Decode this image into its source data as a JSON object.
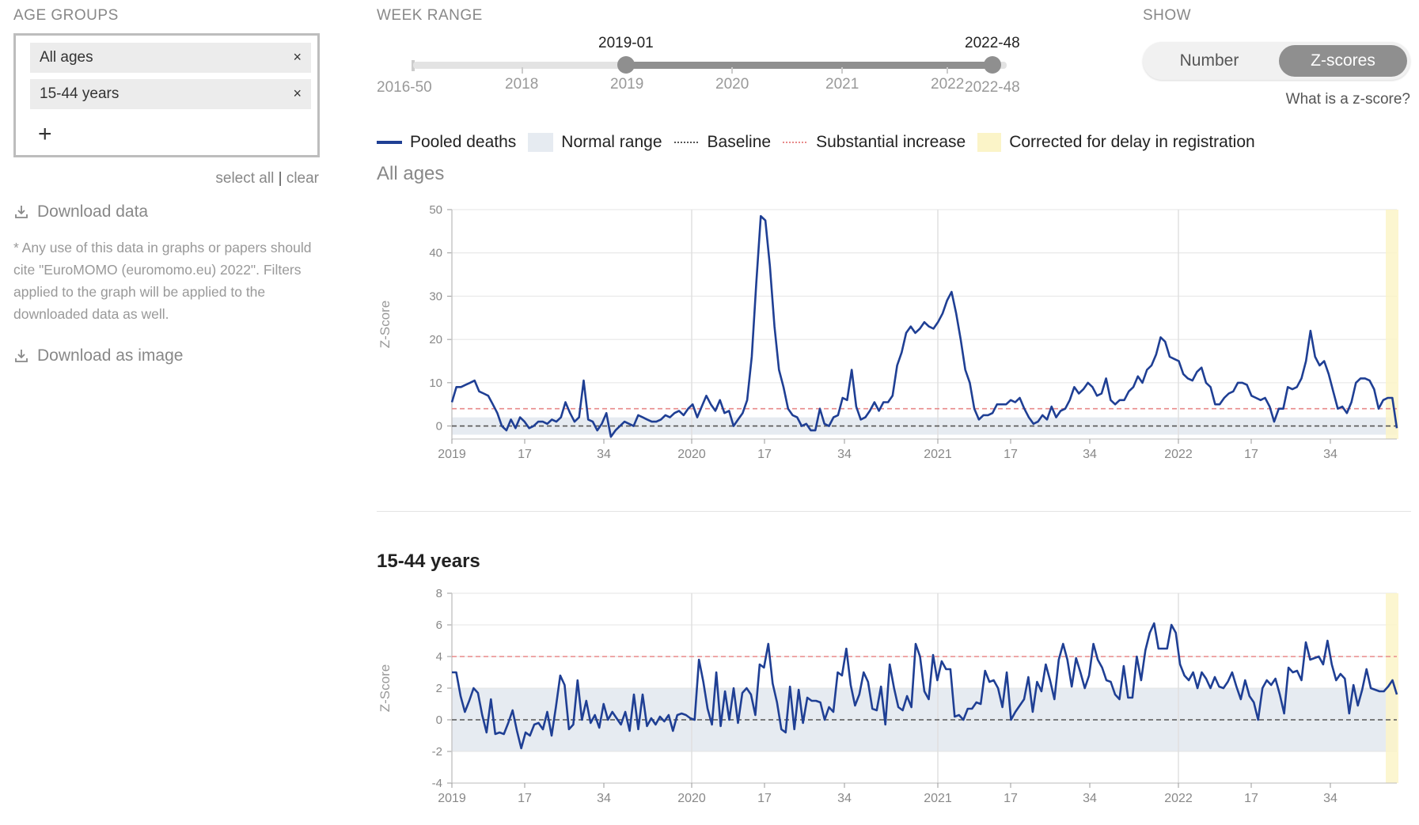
{
  "sidebar": {
    "age_groups_title": "AGE GROUPS",
    "chips": [
      "All ages",
      "15-44 years"
    ],
    "remove_label": "×",
    "add_label": "+",
    "select_all": "select all",
    "separator": "|",
    "clear": "clear",
    "download_data": "Download data",
    "note": "* Any use of this data in graphs or papers should cite \"EuroMOMO (euromomo.eu) 2022\". Filters applied to the graph will be applied to the downloaded data as well.",
    "download_image": "Download as image"
  },
  "week_range": {
    "title": "WEEK RANGE",
    "min_label": "2016-50",
    "max_label": "2022-48",
    "selected_start": "2019-01",
    "selected_end": "2022-48",
    "tick_labels": [
      "2018",
      "2019",
      "2020",
      "2021",
      "2022"
    ]
  },
  "show": {
    "title": "SHOW",
    "options": [
      "Number",
      "Z-scores"
    ],
    "selected": "Z-scores",
    "help_link": "What is a z-score?"
  },
  "legend": {
    "pooled": "Pooled deaths",
    "normal": "Normal range",
    "baseline": "Baseline",
    "substantial": "Substantial increase",
    "corrected": "Corrected for delay in registration"
  },
  "colors": {
    "line": "#1f3f94",
    "normal_range": "#e6ebf1",
    "baseline": "#555555",
    "substantial": "#e88a8a",
    "corrected": "#fbf4c8"
  },
  "chart_data": [
    {
      "type": "line",
      "title": "All ages",
      "ylabel": "Z-Score",
      "ylim": [
        -3,
        50
      ],
      "yticks": [
        0,
        10,
        20,
        30,
        40,
        50
      ],
      "xtick_labels": [
        "2019",
        "17",
        "34",
        "2020",
        "17",
        "34",
        "2021",
        "17",
        "34",
        "2022",
        "17",
        "34"
      ],
      "normal_range": [
        -2,
        2
      ],
      "baseline": 0,
      "substantial_increase": 4,
      "series": [
        {
          "values": [
            5.5,
            9,
            9,
            9.5,
            10,
            10.5,
            8,
            7.5,
            7,
            5,
            3,
            0,
            -1,
            1.5,
            -0.5,
            2,
            1,
            -0.5,
            0,
            1,
            1,
            0.5,
            1.5,
            1,
            2,
            5.5,
            3,
            1,
            2,
            10.5,
            1.5,
            1,
            -1,
            0.5,
            3,
            -2.5,
            -1,
            0,
            1,
            0.5,
            0,
            2.5,
            2,
            1.5,
            1,
            1,
            1.5,
            2.5,
            2,
            3,
            3.5,
            2.5,
            4,
            5,
            2,
            4.5,
            7,
            5,
            3.5,
            6,
            3,
            3.5,
            0,
            1.5,
            3,
            6,
            16,
            33,
            48.5,
            47.5,
            37,
            23,
            13,
            9,
            4,
            2.5,
            2,
            0,
            0.5,
            -1,
            -1,
            4,
            0.5,
            0,
            2,
            2.5,
            6.5,
            6,
            13,
            4.5,
            1.5,
            2,
            3.5,
            5.5,
            3.5,
            5.5,
            5.5,
            7,
            14,
            17,
            21.5,
            23,
            21.5,
            22.5,
            24,
            23,
            22.5,
            24,
            26,
            29,
            31,
            26,
            20,
            13,
            10,
            4,
            1.5,
            2.5,
            2.5,
            3,
            5,
            5,
            5,
            6,
            5.5,
            6.5,
            4,
            2,
            0.5,
            1,
            2.5,
            1.5,
            4.5,
            2,
            3.5,
            4,
            6,
            9,
            7.5,
            8.5,
            10,
            9,
            7,
            7.5,
            11,
            6,
            5,
            6,
            6,
            8,
            9,
            11.5,
            10,
            13,
            14,
            16.5,
            20.5,
            19.5,
            16,
            15.5,
            15,
            12,
            11,
            10.5,
            12.5,
            13.5,
            10,
            9,
            5,
            5,
            6.5,
            7.5,
            8,
            10,
            10,
            9.5,
            7,
            6.5,
            6,
            6.5,
            4.5,
            1,
            4,
            4,
            9,
            8.5,
            9,
            11,
            15,
            22,
            16,
            14,
            15,
            12,
            8,
            4,
            4.5,
            3,
            5.5,
            10,
            11,
            11,
            10.5,
            8.5,
            4,
            6,
            6.5,
            6.5,
            -0.5
          ]
        }
      ]
    },
    {
      "type": "line",
      "title": "15-44 years",
      "ylabel": "Z-Score",
      "ylim": [
        -4,
        8
      ],
      "yticks": [
        -4,
        -2,
        0,
        2,
        4,
        6,
        8
      ],
      "xtick_labels": [
        "2019",
        "17",
        "34",
        "2020",
        "17",
        "34",
        "2021",
        "17",
        "34",
        "2022",
        "17",
        "34"
      ],
      "normal_range": [
        -2,
        2
      ],
      "baseline": 0,
      "substantial_increase": 4,
      "series": [
        {
          "values": [
            3,
            3,
            1.5,
            0.5,
            1.2,
            2,
            1.7,
            0.3,
            -0.8,
            1.3,
            -0.9,
            -0.8,
            -0.9,
            -0.2,
            0.6,
            -0.7,
            -1.8,
            -0.8,
            -1,
            -0.3,
            -0.2,
            -0.6,
            0.5,
            -1,
            0.8,
            2.8,
            2.2,
            -0.6,
            -0.3,
            2.5,
            0,
            1.2,
            -0.2,
            0.3,
            -0.5,
            1,
            0,
            0.5,
            0.1,
            -0.3,
            0.5,
            -0.7,
            1.6,
            -0.6,
            1.6,
            -0.4,
            0.1,
            -0.3,
            0.2,
            -0.1,
            0.3,
            -0.7,
            0.3,
            0.4,
            0.3,
            0.1,
            0,
            3.8,
            2.4,
            0.7,
            -0.3,
            3,
            -0.4,
            1.8,
            0,
            2,
            -0.2,
            1.7,
            2,
            1.6,
            0.3,
            3.5,
            3.3,
            4.8,
            2.3,
            1.1,
            -0.6,
            -0.8,
            2.1,
            -0.6,
            1.9,
            -0.2,
            1.4,
            1.2,
            1.2,
            1.1,
            0,
            0.8,
            0.5,
            3,
            2.8,
            4.5,
            2.2,
            0.9,
            1.6,
            3,
            2.4,
            0.7,
            0.6,
            2.1,
            -0.3,
            3.5,
            2,
            0.8,
            0.6,
            1.5,
            0.8,
            4.8,
            4,
            1.8,
            1.3,
            4.1,
            2.5,
            3.7,
            3.2,
            3.2,
            0.2,
            0.3,
            0,
            0.7,
            0.7,
            1.1,
            1,
            3.1,
            2.4,
            2.5,
            2,
            0.8,
            3,
            0,
            0.5,
            0.9,
            1.3,
            2.7,
            0.5,
            2.4,
            1.8,
            3.5,
            2.5,
            1.3,
            3.8,
            4.8,
            3.8,
            2.1,
            3.9,
            3,
            2,
            2.8,
            4.8,
            3.8,
            3.3,
            2.5,
            2.4,
            1.6,
            1.3,
            3.4,
            1.4,
            1.4,
            4,
            2.5,
            4.4,
            5.5,
            6.1,
            4.5,
            4.5,
            4.5,
            6,
            5.5,
            3.5,
            2.8,
            2.5,
            3,
            2,
            3,
            2.6,
            2,
            2.7,
            2.1,
            2,
            2.4,
            3,
            2.1,
            1.3,
            2.5,
            1.5,
            1.1,
            0,
            2,
            2.5,
            2.2,
            2.6,
            1.6,
            0.4,
            3.3,
            3,
            3.1,
            2.5,
            4.9,
            3.8,
            3.9,
            4,
            3.5,
            5,
            3.5,
            2.5,
            2.9,
            2.6,
            0.4,
            2.2,
            0.9,
            1.9,
            3.2,
            2,
            1.9,
            1.8,
            1.8,
            2.1,
            2.5,
            1.6
          ]
        }
      ]
    }
  ]
}
